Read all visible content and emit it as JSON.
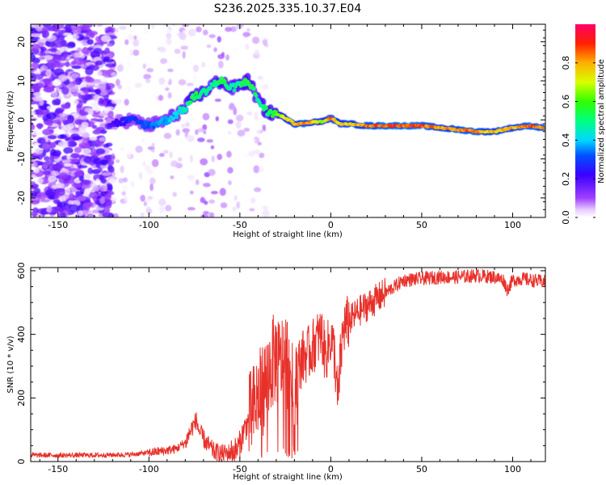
{
  "title": "S236.2025.335.10.37.E04",
  "chart_data": [
    {
      "type": "heatmap",
      "id": "spectrogram",
      "xlabel": "Height of straight line (km)",
      "ylabel": "Frequency (Hz)",
      "xlim": [
        -165,
        118
      ],
      "ylim": [
        -25,
        24.5
      ],
      "xticks": [
        -150,
        -100,
        -50,
        0,
        50,
        100
      ],
      "xtick_labels": [
        "-150",
        "-100",
        "-50",
        "0",
        "50",
        "100"
      ],
      "yticks": [
        -20,
        -10,
        0,
        10,
        20
      ],
      "ytick_labels": [
        "-20",
        "-10",
        "0",
        "10",
        "20"
      ],
      "ridge": {
        "x": [
          -120,
          -110,
          -100,
          -90,
          -80,
          -75,
          -70,
          -65,
          -60,
          -55,
          -50,
          -45,
          -40,
          -35,
          -30,
          -25,
          -20,
          -15,
          -10,
          -5,
          0,
          5,
          10,
          20,
          30,
          40,
          50,
          60,
          70,
          80,
          85,
          90,
          100,
          110,
          116
        ],
        "freq": [
          -1,
          0,
          -1.5,
          0,
          3,
          6,
          7,
          9,
          10,
          8,
          9,
          10,
          5,
          2,
          1.5,
          0.5,
          -1,
          -1,
          -0.5,
          -0.5,
          0.5,
          -1,
          -1,
          -1.5,
          -1.5,
          -1.5,
          -1.5,
          -2,
          -2.5,
          -3,
          -3,
          -3,
          -2,
          -1.5,
          -2
        ],
        "amplitude": [
          0.2,
          0.3,
          0.35,
          0.4,
          0.5,
          0.6,
          0.55,
          0.5,
          0.6,
          0.5,
          0.55,
          0.6,
          0.5,
          0.55,
          0.65,
          0.75,
          0.85,
          0.9,
          0.85,
          0.7,
          0.9,
          0.8,
          0.85,
          0.9,
          0.95,
          0.95,
          0.95,
          0.85,
          0.9,
          0.95,
          0.8,
          0.85,
          0.85,
          0.95,
          0.9
        ]
      },
      "colorbar": {
        "label": "Normalized spectral amplitude",
        "range": [
          0,
          1
        ],
        "ticks": [
          0.0,
          0.2,
          0.4,
          0.6,
          0.8
        ],
        "tick_labels": [
          "0.0",
          "0.2",
          "0.4",
          "0.6",
          "0.8"
        ]
      }
    },
    {
      "type": "line",
      "id": "snr",
      "xlabel": "Height of straight line (km)",
      "ylabel": "SNR (10 * v/v)",
      "xlim": [
        -165,
        118
      ],
      "ylim": [
        0,
        610
      ],
      "xticks": [
        -150,
        -100,
        -50,
        0,
        50,
        100
      ],
      "xtick_labels": [
        "-150",
        "-100",
        "-50",
        "0",
        "50",
        "100"
      ],
      "yticks": [
        0,
        200,
        400,
        600
      ],
      "ytick_labels": [
        "0",
        "200",
        "400",
        "600"
      ],
      "color": "#e8302a",
      "series": [
        {
          "name": "SNR",
          "x": [
            -165,
            -150,
            -130,
            -110,
            -100,
            -90,
            -85,
            -80,
            -76,
            -74,
            -72,
            -68,
            -64,
            -60,
            -55,
            -52,
            -50,
            -48,
            -45,
            -42,
            -40,
            -38,
            -35,
            -33,
            -30,
            -28,
            -25,
            -22,
            -20,
            -18,
            -15,
            -12,
            -10,
            -8,
            -5,
            -3,
            0,
            2,
            4,
            5,
            7,
            10,
            15,
            20,
            25,
            30,
            35,
            40,
            50,
            60,
            70,
            80,
            90,
            95,
            97,
            100,
            105,
            110,
            118
          ],
          "y": [
            20,
            20,
            20,
            22,
            28,
            35,
            40,
            60,
            110,
            130,
            90,
            55,
            30,
            25,
            28,
            35,
            55,
            95,
            130,
            170,
            200,
            220,
            260,
            300,
            330,
            300,
            340,
            280,
            150,
            300,
            330,
            340,
            360,
            380,
            400,
            330,
            390,
            340,
            180,
            300,
            420,
            440,
            470,
            490,
            510,
            530,
            550,
            570,
            575,
            580,
            580,
            585,
            580,
            570,
            540,
            570,
            575,
            570,
            565
          ]
        }
      ]
    }
  ]
}
